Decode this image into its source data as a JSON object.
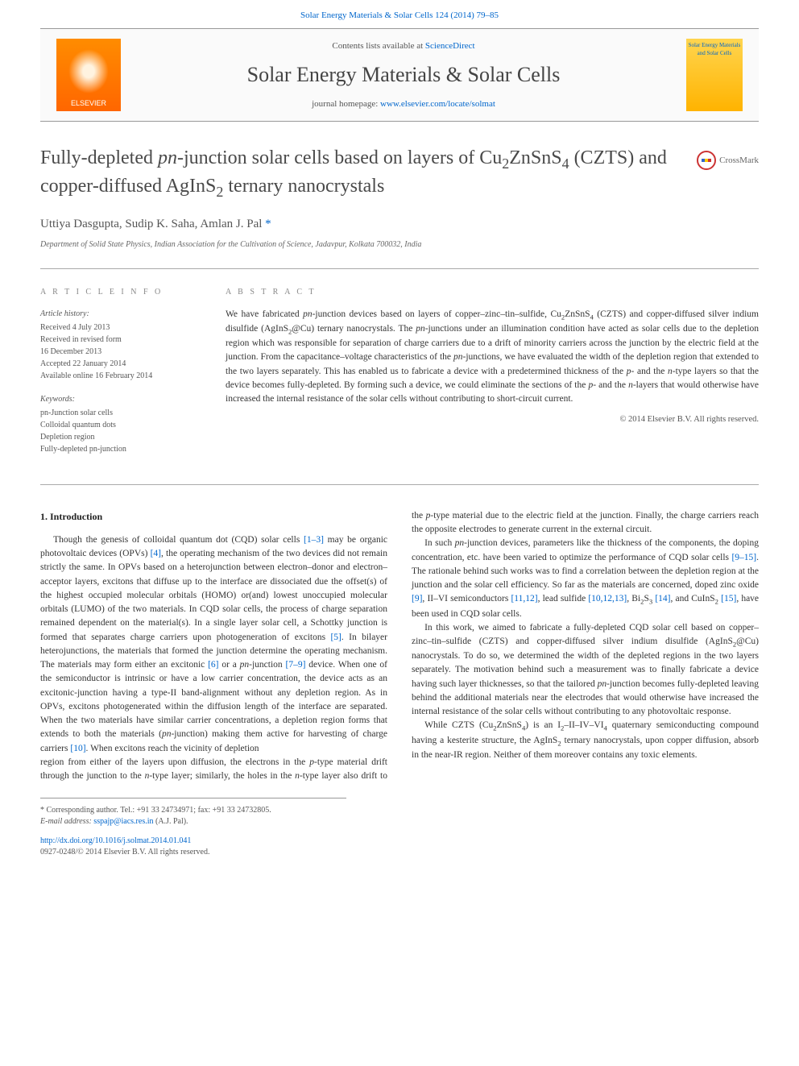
{
  "header": {
    "top_link": "Solar Energy Materials & Solar Cells 124 (2014) 79–85",
    "contents_pre": "Contents lists available at ",
    "contents_link": "ScienceDirect",
    "journal_title": "Solar Energy Materials & Solar Cells",
    "homepage_pre": "journal homepage: ",
    "homepage_link": "www.elsevier.com/locate/solmat",
    "publisher": "ELSEVIER",
    "cover_text": "Solar Energy Materials and Solar Cells"
  },
  "article": {
    "title_html": "Fully-depleted <i>pn</i>-junction solar cells based on layers of Cu<sub>2</sub>ZnSnS<sub>4</sub> (CZTS) and copper-diffused AgInS<sub>2</sub> ternary nanocrystals",
    "crossmark": "CrossMark",
    "authors_html": "Uttiya Dasgupta, Sudip K. Saha, Amlan J. Pal <span class='corr-mark'>*</span>",
    "affiliation": "Department of Solid State Physics, Indian Association for the Cultivation of Science, Jadavpur, Kolkata 700032, India"
  },
  "info": {
    "heading": "A R T I C L E   I N F O",
    "history_label": "Article history:",
    "history": [
      "Received 4 July 2013",
      "Received in revised form",
      "16 December 2013",
      "Accepted 22 January 2014",
      "Available online 16 February 2014"
    ],
    "keywords_label": "Keywords:",
    "keywords": [
      "pn-Junction solar cells",
      "Colloidal quantum dots",
      "Depletion region",
      "Fully-depleted pn-junction"
    ]
  },
  "abstract": {
    "heading": "A B S T R A C T",
    "text_html": "We have fabricated <i>pn</i>-junction devices based on layers of copper–zinc–tin–sulfide, Cu<sub>2</sub>ZnSnS<sub>4</sub> (CZTS) and copper-diffused silver indium disulfide (AgInS<sub>2</sub>@Cu) ternary nanocrystals. The <i>pn</i>-junctions under an illumination condition have acted as solar cells due to the depletion region which was responsible for separation of charge carriers due to a drift of minority carriers across the junction by the electric field at the junction. From the capacitance–voltage characteristics of the <i>pn</i>-junctions, we have evaluated the width of the depletion region that extended to the two layers separately. This has enabled us to fabricate a device with a predetermined thickness of the <i>p</i>- and the <i>n</i>-type layers so that the device becomes fully-depleted. By forming such a device, we could eliminate the sections of the <i>p</i>- and the <i>n</i>-layers that would otherwise have increased the internal resistance of the solar cells without contributing to short-circuit current.",
    "copyright": "© 2014 Elsevier B.V. All rights reserved."
  },
  "body": {
    "section1_heading": "1.  Introduction",
    "p1_html": "Though the genesis of colloidal quantum dot (CQD) solar cells <span class='ref-link'>[1–3]</span> may be organic photovoltaic devices (OPVs) <span class='ref-link'>[4]</span>, the operating mechanism of the two devices did not remain strictly the same. In OPVs based on a heterojunction between electron–donor and electron–acceptor layers, excitons that diffuse up to the interface are dissociated due the offset(s) of the highest occupied molecular orbitals (HOMO) or(and) lowest unoccupied molecular orbitals (LUMO) of the two materials. In CQD solar cells, the process of charge separation remained dependent on the material(s). In a single layer solar cell, a Schottky junction is formed that separates charge carriers upon photogeneration of excitons <span class='ref-link'>[5]</span>. In bilayer heterojunctions, the materials that formed the junction determine the operating mechanism. The materials may form either an excitonic <span class='ref-link'>[6]</span> or a <i>pn</i>-junction <span class='ref-link'>[7–9]</span> device. When one of the semiconductor is intrinsic or have a low carrier concentration, the device acts as an excitonic-junction having a type-II band-alignment without any depletion region. As in OPVs, excitons photogenerated within the diffusion length of the interface are separated. When the two materials have similar carrier concentrations, a depletion region forms that extends to both the materials (<i>pn</i>-junction) making them active for harvesting of charge carriers <span class='ref-link'>[10]</span>. When excitons reach the vicinity of depletion",
    "p2_html": "region from either of the layers upon diffusion, the electrons in the <i>p</i>-type material drift through the junction to the <i>n</i>-type layer; similarly, the holes in the <i>n</i>-type layer also drift to the <i>p</i>-type material due to the electric field at the junction. Finally, the charge carriers reach the opposite electrodes to generate current in the external circuit.",
    "p3_html": "In such <i>pn</i>-junction devices, parameters like the thickness of the components, the doping concentration, etc. have been varied to optimize the performance of CQD solar cells <span class='ref-link'>[9–15]</span>. The rationale behind such works was to find a correlation between the depletion region at the junction and the solar cell efficiency. So far as the materials are concerned, doped zinc oxide <span class='ref-link'>[9]</span>, II–VI semiconductors <span class='ref-link'>[11,12]</span>, lead sulfide <span class='ref-link'>[10,12,13]</span>, Bi<sub>2</sub>S<sub>3</sub> <span class='ref-link'>[14]</span>, and CuInS<sub>2</sub> <span class='ref-link'>[15]</span>, have been used in CQD solar cells.",
    "p4_html": "In this work, we aimed to fabricate a fully-depleted CQD solar cell based on copper–zinc–tin–sulfide (CZTS) and copper-diffused silver indium disulfide (AgInS<sub>2</sub>@Cu) nanocrystals. To do so, we determined the width of the depleted regions in the two layers separately. The motivation behind such a measurement was to finally fabricate a device having such layer thicknesses, so that the tailored <i>pn</i>-junction becomes fully-depleted leaving behind the additional materials near the electrodes that would otherwise have increased the internal resistance of the solar cells without contributing to any photovoltaic response.",
    "p5_html": "While CZTS (Cu<sub>2</sub>ZnSnS<sub>4</sub>) is an I<sub>2</sub>–II–IV–VI<sub>4</sub> quaternary semiconducting compound having a kesterite structure, the AgInS<sub>2</sub> ternary nanocrystals, upon copper diffusion, absorb in the near-IR region. Neither of them moreover contains any toxic elements."
  },
  "footer": {
    "corr_html": "* Corresponding author. Tel.: +91 33 24734971; fax: +91 33 24732805.",
    "email_label": "E-mail address: ",
    "email": "sspajp@iacs.res.in",
    "email_suffix": " (A.J. Pal).",
    "doi": "http://dx.doi.org/10.1016/j.solmat.2014.01.041",
    "issn": "0927-0248/© 2014 Elsevier B.V. All rights reserved."
  },
  "colors": {
    "link": "#0066cc",
    "text": "#333333",
    "heading_gray": "#888888",
    "elsevier_orange": "#ff6600"
  }
}
